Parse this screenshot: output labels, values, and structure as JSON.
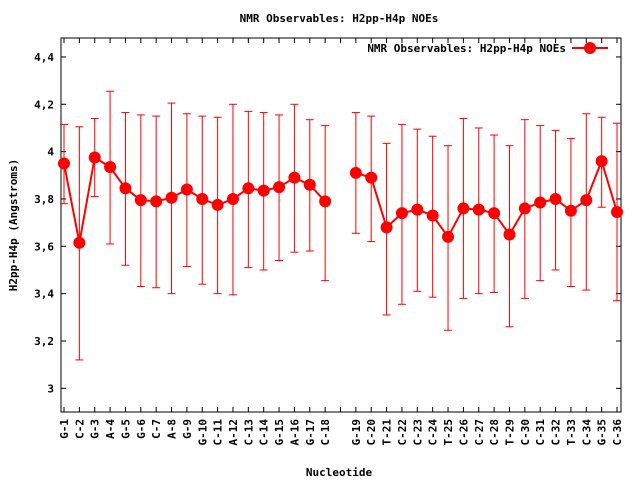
{
  "chart_data": {
    "type": "line",
    "title": "NMR Observables: H2pp-H4p NOEs",
    "xlabel": "Nucleotide",
    "ylabel": "H2pp-H4p (Angstroms)",
    "ylim": [
      2.9,
      4.48
    ],
    "yticks": [
      3,
      3.2,
      3.4,
      3.6,
      3.8,
      4,
      4.2,
      4.4
    ],
    "ytick_labels": [
      "3",
      "3,2",
      "3,4",
      "3,6",
      "3,8",
      "4",
      "4,2",
      "4,4"
    ],
    "grid": false,
    "legend_position": "top-right",
    "categories": [
      "G-1",
      "C-2",
      "G-3",
      "A-4",
      "G-5",
      "G-6",
      "C-7",
      "A-8",
      "G-9",
      "G-10",
      "C-11",
      "A-12",
      "C-13",
      "C-14",
      "G-15",
      "A-16",
      "G-17",
      "C-18",
      "",
      "G-19",
      "C-20",
      "T-21",
      "C-22",
      "C-23",
      "C-24",
      "T-25",
      "C-26",
      "C-27",
      "C-28",
      "T-29",
      "C-30",
      "C-31",
      "C-32",
      "T-33",
      "C-34",
      "G-35",
      "C-36"
    ],
    "series": [
      {
        "name": "NMR Observables: H2pp-H4p NOEs",
        "color": "#ff0000",
        "values": [
          3.95,
          3.615,
          3.975,
          3.935,
          3.845,
          3.795,
          3.79,
          3.805,
          3.84,
          3.8,
          3.775,
          3.8,
          3.845,
          3.835,
          3.85,
          3.89,
          3.86,
          3.79,
          null,
          3.91,
          3.89,
          3.68,
          3.74,
          3.755,
          3.73,
          3.64,
          3.76,
          3.755,
          3.74,
          3.65,
          3.76,
          3.785,
          3.8,
          3.75,
          3.795,
          3.96,
          3.745
        ],
        "err_low": [
          3.78,
          3.12,
          3.81,
          3.61,
          3.52,
          3.43,
          3.425,
          3.4,
          3.515,
          3.44,
          3.4,
          3.395,
          3.51,
          3.5,
          3.54,
          3.575,
          3.58,
          3.455,
          null,
          3.655,
          3.62,
          3.31,
          3.355,
          3.41,
          3.385,
          3.245,
          3.38,
          3.4,
          3.405,
          3.26,
          3.38,
          3.455,
          3.5,
          3.43,
          3.415,
          3.765,
          3.37
        ],
        "err_high": [
          4.115,
          4.105,
          4.14,
          4.255,
          4.165,
          4.155,
          4.15,
          4.205,
          4.16,
          4.15,
          4.145,
          4.2,
          4.17,
          4.165,
          4.155,
          4.2,
          4.135,
          4.11,
          null,
          4.165,
          4.15,
          4.035,
          4.115,
          4.095,
          4.065,
          4.025,
          4.14,
          4.1,
          4.07,
          4.025,
          4.135,
          4.11,
          4.09,
          4.055,
          4.16,
          4.145,
          4.12
        ]
      }
    ]
  }
}
